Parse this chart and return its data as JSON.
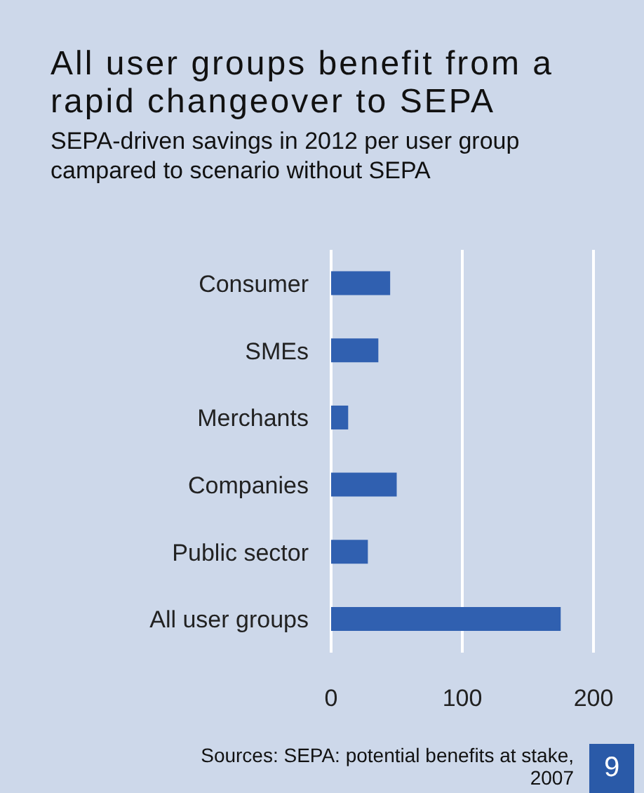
{
  "chart_data": {
    "type": "bar",
    "orientation": "horizontal",
    "title": "All user groups benefit from a rapid changeover to SEPA",
    "subtitle": "SEPA-driven savings in 2012 per user group campared to scenario without SEPA",
    "categories": [
      "Consumer",
      "SMEs",
      "Merchants",
      "Companies",
      "Public sector",
      "All user groups"
    ],
    "values": [
      45,
      36,
      13,
      50,
      28,
      175
    ],
    "color": "#3060b0",
    "xlim": [
      0,
      200
    ],
    "xticks": [
      0,
      100,
      200
    ],
    "grid": "x",
    "annotations": [
      "Sources: SEPA: potential benefits at stake, 2007",
      "9"
    ]
  }
}
